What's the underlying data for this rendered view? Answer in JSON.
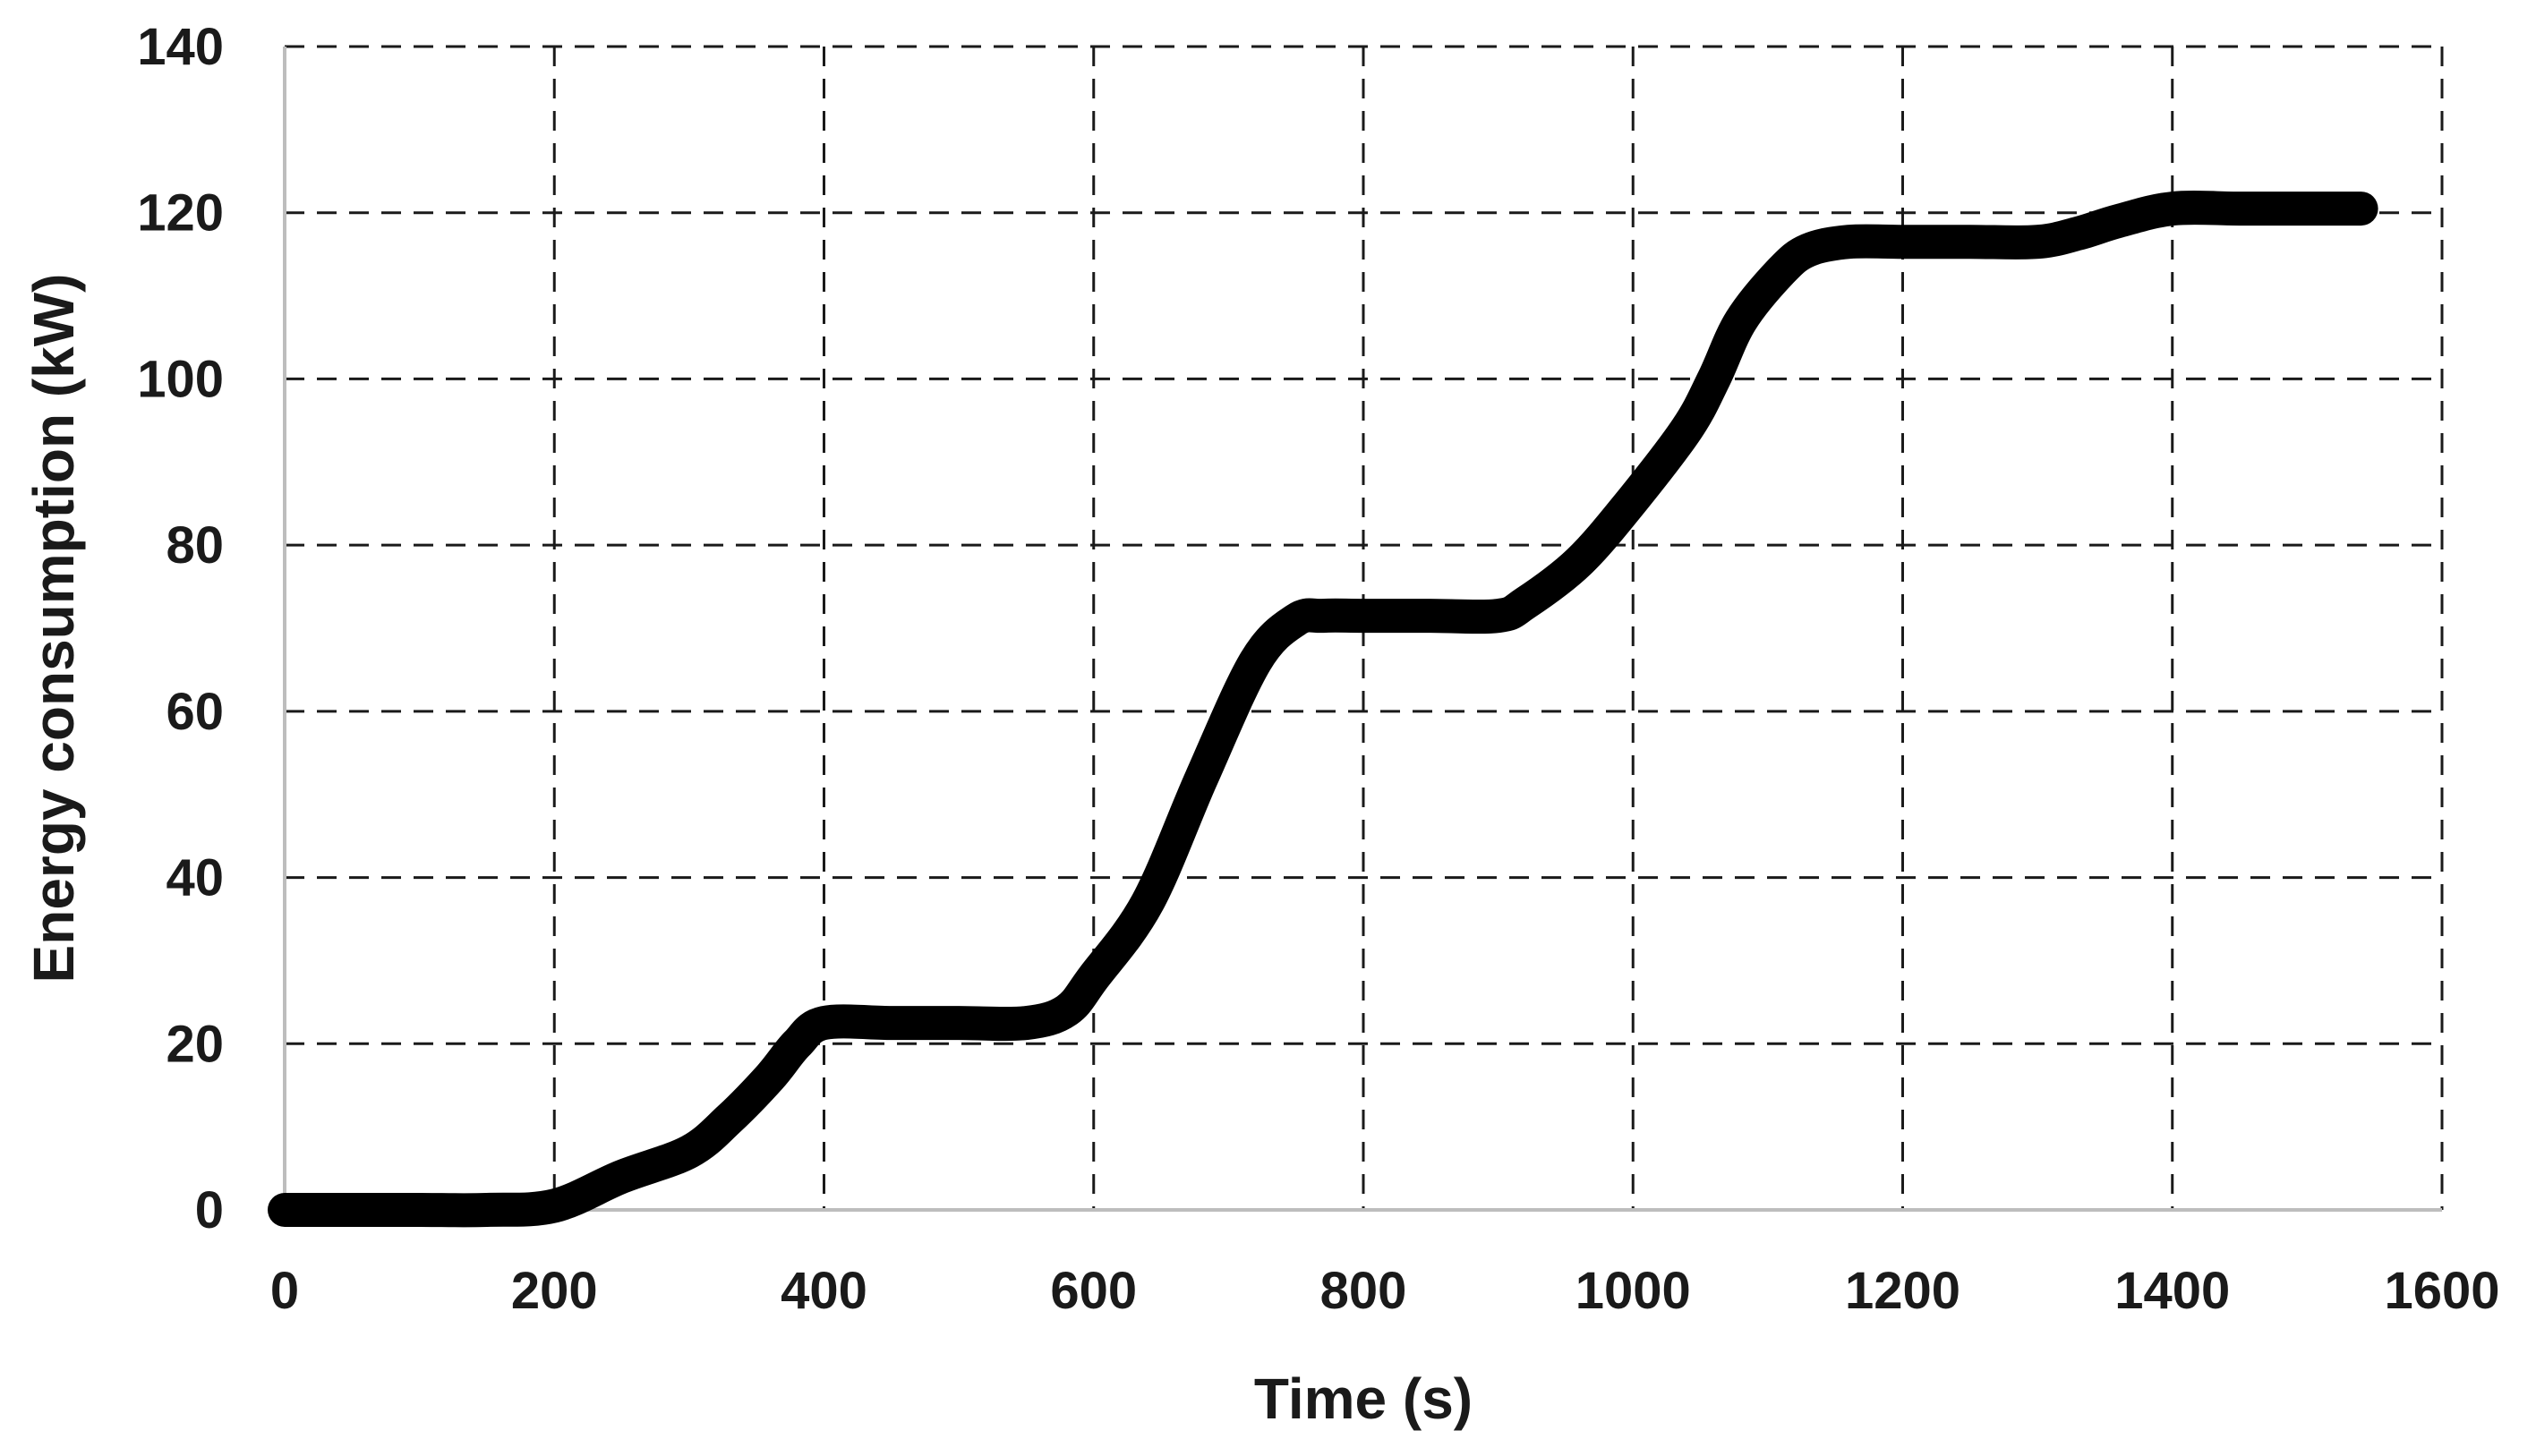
{
  "chart_data": {
    "type": "line",
    "title": "",
    "xlabel": "Time (s)",
    "ylabel": "Energy consumption (kW)",
    "xlim": [
      0,
      1600
    ],
    "ylim": [
      0,
      140
    ],
    "x_ticks": [
      0,
      200,
      400,
      600,
      800,
      1000,
      1200,
      1400,
      1600
    ],
    "y_ticks": [
      0,
      20,
      40,
      60,
      80,
      100,
      120,
      140
    ],
    "x_tick_labels": [
      "0",
      "200",
      "400",
      "600",
      "800",
      "1000",
      "1200",
      "1400",
      "1600"
    ],
    "y_tick_labels": [
      "0",
      "20",
      "40",
      "60",
      "80",
      "100",
      "120",
      "140"
    ],
    "grid": true,
    "grid_style": "dashed",
    "legend": "none",
    "colors": {
      "series": "#000000",
      "grid": "#1a1a1a",
      "axis": "#bdbdbd",
      "text": "#1a1a1a"
    },
    "series": [
      {
        "name": "",
        "x": [
          0,
          50,
          100,
          150,
          200,
          250,
          300,
          330,
          360,
          380,
          400,
          450,
          500,
          550,
          580,
          600,
          640,
          680,
          720,
          750,
          770,
          800,
          850,
          900,
          920,
          960,
          1000,
          1040,
          1060,
          1080,
          1110,
          1130,
          1160,
          1200,
          1250,
          1300,
          1330,
          1360,
          1400,
          1450,
          1500,
          1540
        ],
        "y": [
          0,
          0,
          0,
          0,
          0.5,
          4,
          7,
          11,
          16,
          20,
          22.5,
          22.5,
          22.5,
          22.5,
          24,
          28,
          37,
          52,
          66,
          71,
          71.5,
          71.5,
          71.5,
          71.5,
          73,
          78,
          85.5,
          94,
          100,
          107,
          113,
          115.5,
          116.5,
          116.5,
          116.5,
          116.5,
          117.5,
          119,
          120.5,
          120.5,
          120.5,
          120.5
        ]
      }
    ]
  }
}
